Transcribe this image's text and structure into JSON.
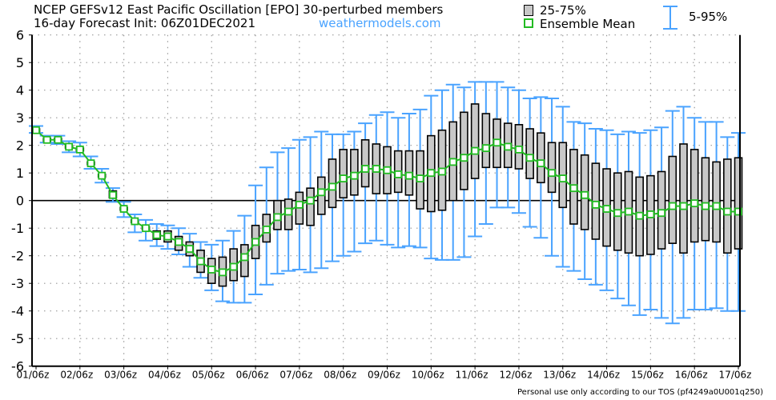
{
  "header": {
    "title_line1": "NCEP GEFSv12 East Pacific Oscillation [EPO]  30-perturbed members",
    "title_line2": "16-day Forecast Init: 06Z01DEC2021",
    "site": "weathermodels.com"
  },
  "footer": "Personal use only according to our TOS (pf4249a0U001q250)",
  "colors": {
    "box_fill": "#c8c8c8",
    "box_stroke": "#000000",
    "whisker": "#4aa3ff",
    "mean": "#22bb22",
    "zero_line": "#000000"
  },
  "chart_data": {
    "type": "box",
    "legend": {
      "position": "top-right",
      "box": "25-75%",
      "mean": "Ensemble Mean",
      "whisker": "5-95%"
    },
    "ylim": [
      -6,
      6
    ],
    "yticks": [
      6,
      5,
      4,
      3,
      2,
      1,
      0,
      -1,
      -2,
      -3,
      -4,
      -5,
      -6
    ],
    "xtick_labels": [
      "01/06z",
      "02/06z",
      "03/06z",
      "04/06z",
      "05/06z",
      "06/06z",
      "07/06z",
      "08/06z",
      "09/06z",
      "10/06z",
      "11/06z",
      "12/06z",
      "13/06z",
      "14/06z",
      "15/06z",
      "16/06z",
      "17/06z"
    ],
    "step_hours": 6,
    "grid": true,
    "mean": [
      2.55,
      2.2,
      2.2,
      1.95,
      1.85,
      1.35,
      0.9,
      0.2,
      -0.3,
      -0.75,
      -1.0,
      -1.25,
      -1.3,
      -1.5,
      -1.75,
      -2.2,
      -2.5,
      -2.6,
      -2.4,
      -2.05,
      -1.5,
      -1.05,
      -0.6,
      -0.4,
      -0.15,
      0.0,
      0.3,
      0.5,
      0.8,
      0.9,
      1.15,
      1.15,
      1.1,
      0.95,
      0.9,
      0.8,
      1.0,
      1.05,
      1.4,
      1.55,
      1.8,
      1.9,
      2.1,
      1.95,
      1.85,
      1.55,
      1.35,
      1.0,
      0.8,
      0.45,
      0.2,
      -0.15,
      -0.3,
      -0.45,
      -0.4,
      -0.55,
      -0.5,
      -0.45,
      -0.2,
      -0.2,
      -0.1,
      -0.2,
      -0.2,
      -0.4,
      -0.4
    ],
    "q25": [
      2.5,
      2.15,
      2.15,
      1.9,
      1.8,
      1.3,
      0.85,
      0.1,
      -0.35,
      -0.8,
      -1.05,
      -1.4,
      -1.5,
      -1.8,
      -2.0,
      -2.6,
      -3.0,
      -3.1,
      -2.9,
      -2.75,
      -2.1,
      -1.5,
      -1.05,
      -1.05,
      -0.85,
      -0.9,
      -0.5,
      -0.25,
      0.1,
      0.2,
      0.5,
      0.25,
      0.25,
      0.3,
      0.2,
      -0.3,
      -0.4,
      -0.35,
      0.0,
      0.4,
      0.8,
      1.2,
      1.2,
      1.2,
      1.15,
      0.8,
      0.65,
      0.3,
      -0.25,
      -0.85,
      -1.05,
      -1.4,
      -1.65,
      -1.8,
      -1.9,
      -2.0,
      -1.95,
      -1.75,
      -1.55,
      -1.9,
      -1.5,
      -1.45,
      -1.5,
      -1.9,
      -1.75
    ],
    "q75": [
      2.6,
      2.25,
      2.25,
      2.0,
      1.9,
      1.4,
      0.95,
      0.35,
      -0.25,
      -0.7,
      -0.95,
      -1.1,
      -1.1,
      -1.3,
      -1.5,
      -1.8,
      -2.1,
      -2.05,
      -1.75,
      -1.6,
      -0.9,
      -0.5,
      0.0,
      0.05,
      0.3,
      0.45,
      0.85,
      1.5,
      1.85,
      1.85,
      2.2,
      2.05,
      1.95,
      1.8,
      1.8,
      1.8,
      2.35,
      2.55,
      2.85,
      3.2,
      3.5,
      3.15,
      2.95,
      2.8,
      2.75,
      2.6,
      2.45,
      2.1,
      2.1,
      1.85,
      1.65,
      1.35,
      1.15,
      1.0,
      1.05,
      0.85,
      0.9,
      1.05,
      1.6,
      2.05,
      1.85,
      1.55,
      1.4,
      1.5,
      1.55
    ],
    "p5": [
      2.45,
      2.1,
      2.05,
      1.75,
      1.6,
      1.15,
      0.65,
      -0.05,
      -0.6,
      -1.15,
      -1.45,
      -1.65,
      -1.75,
      -1.95,
      -2.4,
      -2.8,
      -3.25,
      -3.65,
      -3.7,
      -3.7,
      -3.4,
      -3.05,
      -2.65,
      -2.55,
      -2.5,
      -2.6,
      -2.45,
      -2.2,
      -2.0,
      -1.85,
      -1.55,
      -1.45,
      -1.6,
      -1.7,
      -1.65,
      -1.7,
      -2.1,
      -2.15,
      -2.15,
      -2.05,
      -1.3,
      -0.85,
      -0.25,
      -0.25,
      -0.45,
      -0.95,
      -1.35,
      -2.0,
      -2.4,
      -2.55,
      -2.85,
      -3.05,
      -3.25,
      -3.55,
      -3.8,
      -4.15,
      -3.95,
      -4.25,
      -4.45,
      -4.25,
      -3.95,
      -3.95,
      -3.9,
      -4.0,
      -4.0
    ],
    "p95": [
      2.7,
      2.35,
      2.35,
      2.15,
      2.1,
      1.6,
      1.15,
      0.45,
      -0.05,
      -0.5,
      -0.7,
      -0.85,
      -0.9,
      -1.0,
      -1.2,
      -1.5,
      -1.6,
      -1.45,
      -1.1,
      -0.55,
      0.55,
      1.2,
      1.75,
      1.9,
      2.2,
      2.3,
      2.5,
      2.4,
      2.4,
      2.5,
      2.8,
      3.1,
      3.2,
      3.0,
      3.15,
      3.3,
      3.8,
      4.0,
      4.2,
      4.1,
      4.3,
      4.3,
      4.3,
      4.1,
      4.0,
      3.7,
      3.75,
      3.7,
      3.4,
      2.85,
      2.8,
      2.6,
      2.55,
      2.4,
      2.5,
      2.45,
      2.55,
      2.65,
      3.25,
      3.4,
      3.0,
      2.85,
      2.85,
      2.3,
      2.45
    ]
  }
}
